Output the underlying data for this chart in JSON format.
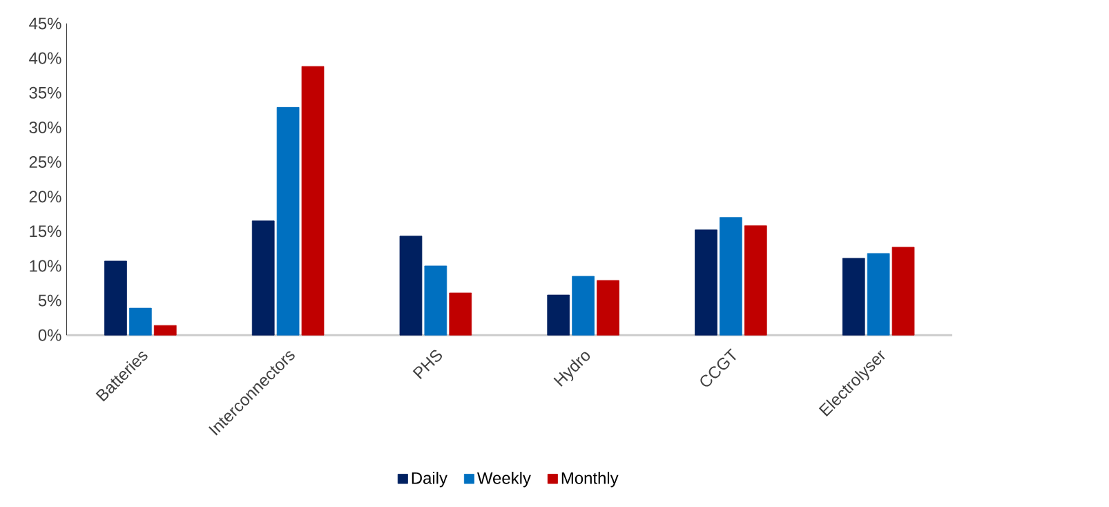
{
  "chart_data": {
    "type": "bar",
    "categories": [
      "Batteries",
      "Interconnectors",
      "PHS",
      "Hydro",
      "CCGT",
      "Electrolyser"
    ],
    "series": [
      {
        "name": "Daily",
        "color": "#002060",
        "values": [
          10.7,
          16.5,
          14.3,
          5.8,
          15.2,
          11.1
        ]
      },
      {
        "name": "Weekly",
        "color": "#0070c0",
        "values": [
          3.9,
          32.9,
          10.0,
          8.5,
          17.0,
          11.8
        ]
      },
      {
        "name": "Monthly",
        "color": "#c00000",
        "values": [
          1.4,
          38.8,
          6.1,
          7.9,
          15.8,
          12.7
        ]
      }
    ],
    "ylim": [
      0,
      45
    ],
    "yticks": [
      {
        "value": 0,
        "label": "0%"
      },
      {
        "value": 5,
        "label": "5%"
      },
      {
        "value": 10,
        "label": "10%"
      },
      {
        "value": 15,
        "label": "15%"
      },
      {
        "value": 20,
        "label": "20%"
      },
      {
        "value": 25,
        "label": "25%"
      },
      {
        "value": 30,
        "label": "30%"
      },
      {
        "value": 35,
        "label": "35%"
      },
      {
        "value": 40,
        "label": "40%"
      },
      {
        "value": 45,
        "label": "45%"
      }
    ],
    "grid": false,
    "legend": "bottom"
  }
}
